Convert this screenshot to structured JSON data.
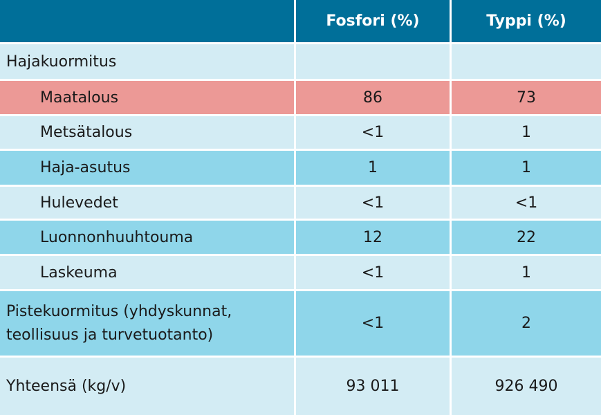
{
  "table": {
    "headers": [
      "",
      "Fosfori (%)",
      "Typpi (%)"
    ],
    "rows": [
      {
        "label": "Hajakuormitus",
        "fosfori": "",
        "typpi": "",
        "style": "light",
        "indent": false
      },
      {
        "label": "Maatalous",
        "fosfori": "86",
        "typpi": "73",
        "style": "red",
        "indent": true
      },
      {
        "label": "Metsätalous",
        "fosfori": "<1",
        "typpi": "1",
        "style": "light",
        "indent": true
      },
      {
        "label": "Haja-asutus",
        "fosfori": "1",
        "typpi": "1",
        "style": "mid",
        "indent": true
      },
      {
        "label": "Hulevedet",
        "fosfori": "<1",
        "typpi": "<1",
        "style": "light",
        "indent": true
      },
      {
        "label": "Luonnonhuuhtouma",
        "fosfori": "12",
        "typpi": "22",
        "style": "mid",
        "indent": true
      },
      {
        "label": "Laskeuma",
        "fosfori": "<1",
        "typpi": "1",
        "style": "light",
        "indent": true
      },
      {
        "label": "Pistekuormitus (yhdyskunnat, teollisuus ja turvetuotanto)",
        "label_line1": "Pistekuormitus (yhdyskunnat,",
        "label_line2": "teollisuus ja turvetuotanto)",
        "fosfori": "<1",
        "typpi": "2",
        "style": "mid",
        "indent": false
      },
      {
        "label": "Yhteensä (kg/v)",
        "fosfori": "93 011",
        "typpi": "926 490",
        "style": "light",
        "indent": false
      }
    ]
  },
  "colors": {
    "header": "#006f99",
    "light_row": "#d3ecf4",
    "mid_row": "#8fd6ea",
    "highlight_row": "#ec9996"
  }
}
